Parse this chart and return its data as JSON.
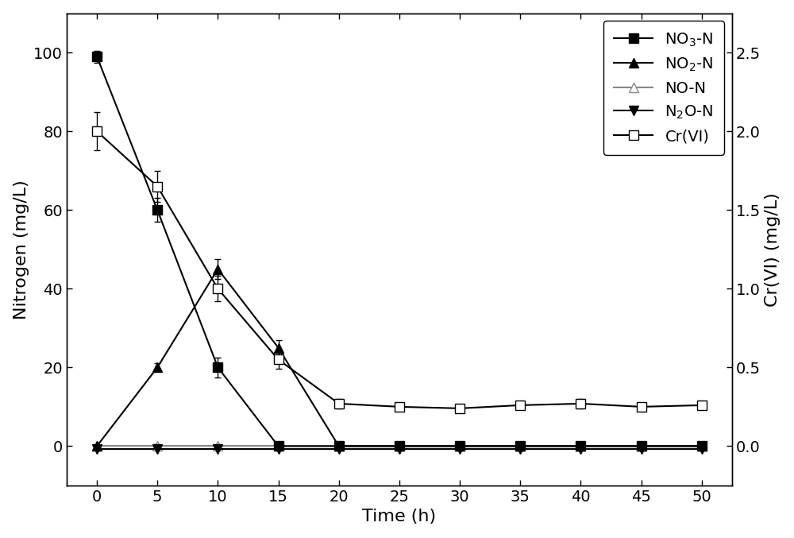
{
  "time": [
    0,
    5,
    10,
    15,
    20,
    25,
    30,
    35,
    40,
    45,
    50
  ],
  "NO3_N": [
    99,
    60,
    20,
    0,
    0,
    0,
    0,
    0,
    0,
    0,
    0
  ],
  "NO3_N_err": [
    1.5,
    3.0,
    2.5,
    0,
    0,
    0,
    0,
    0,
    0,
    0,
    0
  ],
  "NO2_N": [
    0,
    20,
    45,
    25,
    0,
    0,
    0,
    0,
    0,
    0,
    0
  ],
  "NO2_N_err": [
    0,
    1.0,
    2.5,
    2.0,
    0,
    0,
    0,
    0,
    0,
    0,
    0
  ],
  "NO_N": [
    0,
    0,
    0,
    0,
    0,
    0,
    0,
    0,
    0,
    0,
    0
  ],
  "NO_N_err": [
    0,
    0,
    0,
    0,
    0,
    0,
    0,
    0,
    0,
    0,
    0
  ],
  "N2O_N": [
    -0.8,
    -0.8,
    -0.8,
    -0.8,
    -0.8,
    -0.8,
    -0.8,
    -0.8,
    -0.8,
    -0.8,
    -0.8
  ],
  "CrVI": [
    2.0,
    1.65,
    1.0,
    0.55,
    0.27,
    0.25,
    0.24,
    0.26,
    0.27,
    0.25,
    0.26
  ],
  "CrVI_err": [
    0.12,
    0.1,
    0.08,
    0.06,
    0.03,
    0.02,
    0.02,
    0.02,
    0.03,
    0.02,
    0.02
  ],
  "ylabel_left": "Nitrogen (mg/L)",
  "ylabel_right": "Cr(VI) (mg/L)",
  "xlabel": "Time (h)",
  "ylim_left": [
    -10,
    110
  ],
  "ylim_right": [
    -0.25,
    2.75
  ],
  "yticks_left": [
    0,
    20,
    40,
    60,
    80,
    100
  ],
  "yticks_right": [
    0.0,
    0.5,
    1.0,
    1.5,
    2.0,
    2.5
  ],
  "xticks": [
    0,
    5,
    10,
    15,
    20,
    25,
    30,
    35,
    40,
    45,
    50
  ],
  "legend_labels": [
    "NO$_3$-N",
    "NO$_2$-N",
    "NO-N",
    "N$_2$O-N",
    "Cr(VI)"
  ],
  "color_black": "#000000",
  "color_gray": "#888888",
  "linewidth": 1.5,
  "markersize": 9,
  "fontsize_label": 16,
  "fontsize_tick": 14,
  "fontsize_legend": 14
}
